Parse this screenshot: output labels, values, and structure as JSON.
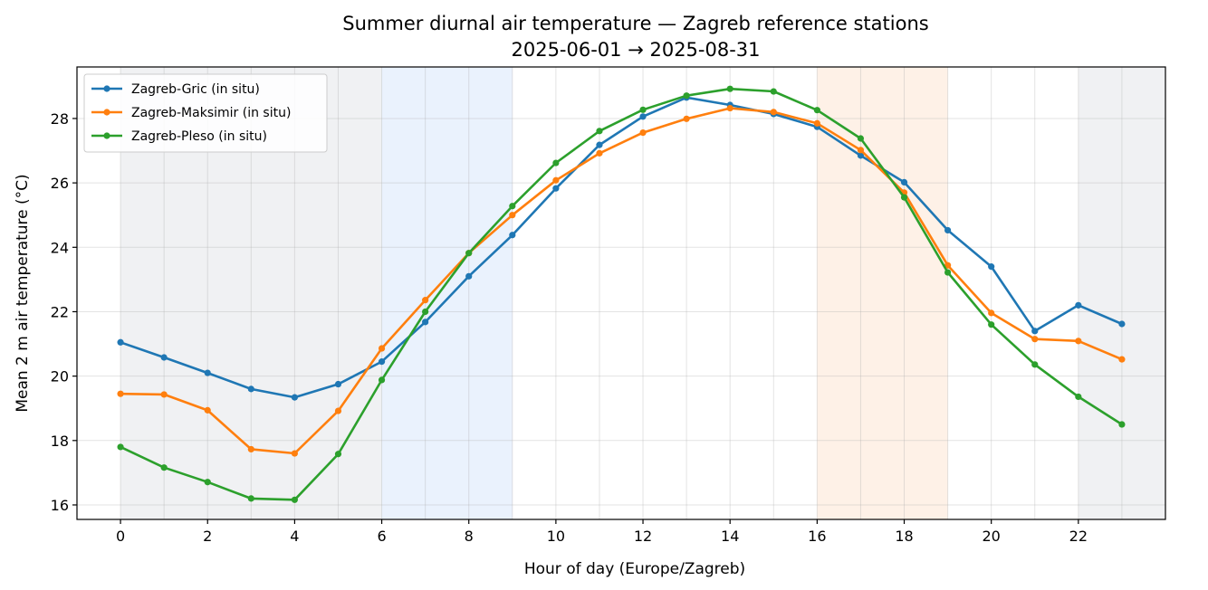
{
  "chart_data": {
    "type": "line",
    "title": "Summer diurnal air temperature — Zagreb reference stations",
    "subtitle": "2025-06-01 → 2025-08-31",
    "xlabel": "Hour of day (Europe/Zagreb)",
    "ylabel": "Mean 2 m air temperature (°C)",
    "xlim": [
      -1,
      24
    ],
    "ylim": [
      15.55,
      29.6
    ],
    "xticks": [
      0,
      2,
      4,
      6,
      8,
      10,
      12,
      14,
      16,
      18,
      20,
      22
    ],
    "yticks": [
      16,
      18,
      20,
      22,
      24,
      26,
      28
    ],
    "grid": true,
    "legend_position": "top-left",
    "x": [
      0,
      1,
      2,
      3,
      4,
      5,
      6,
      7,
      8,
      9,
      10,
      11,
      12,
      13,
      14,
      15,
      16,
      17,
      18,
      19,
      20,
      21,
      22,
      23
    ],
    "shaded_bands": [
      {
        "x0": 0,
        "x1": 6,
        "color": "#e3e6ea"
      },
      {
        "x0": 6,
        "x1": 9,
        "color": "#d8e8fb"
      },
      {
        "x0": 16,
        "x1": 19,
        "color": "#fde6d3"
      },
      {
        "x0": 22,
        "x1": 24,
        "color": "#e3e6ea"
      }
    ],
    "series": [
      {
        "name": "Zagreb-Gric (in situ)",
        "color": "#1f77b4",
        "values": [
          21.05,
          20.58,
          20.1,
          19.6,
          19.34,
          19.75,
          20.45,
          21.68,
          23.1,
          24.38,
          25.83,
          27.18,
          28.06,
          28.65,
          28.42,
          28.14,
          27.74,
          26.85,
          26.02,
          24.53,
          23.4,
          21.4,
          22.2,
          21.62
        ]
      },
      {
        "name": "Zagreb-Maksimir (in situ)",
        "color": "#ff7f0e",
        "values": [
          19.45,
          19.43,
          18.94,
          17.73,
          17.6,
          18.92,
          20.86,
          22.36,
          23.82,
          25.0,
          26.08,
          26.92,
          27.56,
          27.99,
          28.32,
          28.2,
          27.85,
          27.02,
          25.7,
          23.44,
          21.96,
          21.15,
          21.09,
          20.52
        ]
      },
      {
        "name": "Zagreb-Pleso (in situ)",
        "color": "#2ca02c",
        "values": [
          17.8,
          17.16,
          16.71,
          16.2,
          16.16,
          17.58,
          19.88,
          22.0,
          23.82,
          25.28,
          26.62,
          27.61,
          28.27,
          28.71,
          28.92,
          28.84,
          28.26,
          27.38,
          25.55,
          23.22,
          21.6,
          20.36,
          19.36,
          18.5
        ]
      }
    ]
  }
}
